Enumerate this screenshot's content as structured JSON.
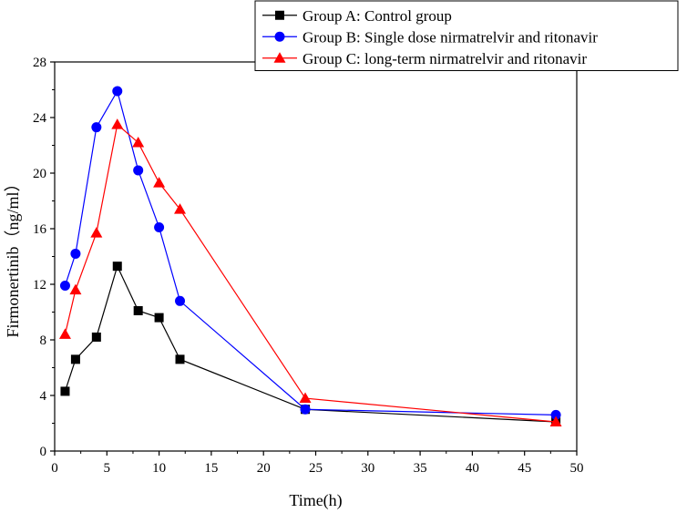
{
  "chart_data": {
    "type": "line",
    "title": "",
    "xlabel": "Time(h)",
    "ylabel": "Firmonertinib（ng/ml）",
    "xlim": [
      0,
      50
    ],
    "ylim": [
      0,
      28
    ],
    "x_ticks": [
      "0",
      "5",
      "10",
      "15",
      "20",
      "25",
      "30",
      "35",
      "40",
      "45",
      "50"
    ],
    "y_ticks": [
      "0",
      "4",
      "8",
      "12",
      "16",
      "20",
      "24",
      "28"
    ],
    "legend_position": "top-right",
    "series": [
      {
        "name": "Group A: Control group",
        "color": "#000000",
        "marker": "square",
        "x": [
          1,
          2,
          4,
          6,
          8,
          10,
          12,
          24,
          48
        ],
        "y": [
          4.3,
          6.6,
          8.2,
          13.3,
          10.1,
          9.6,
          6.6,
          3.0,
          2.1
        ]
      },
      {
        "name": "Group B: Single dose nirmatrelvir and ritonavir",
        "color": "#0000ff",
        "marker": "circle",
        "x": [
          1,
          2,
          4,
          6,
          8,
          10,
          12,
          24,
          48
        ],
        "y": [
          11.9,
          14.2,
          23.3,
          25.9,
          20.2,
          16.1,
          10.8,
          3.0,
          2.6
        ]
      },
      {
        "name": "Group C: long-term nirmatrelvir and ritonavir",
        "color": "#ff0000",
        "marker": "triangle",
        "x": [
          1,
          2,
          4,
          6,
          8,
          10,
          12,
          24,
          48
        ],
        "y": [
          8.4,
          11.6,
          15.7,
          23.5,
          22.2,
          19.3,
          17.4,
          3.8,
          2.1
        ]
      }
    ]
  }
}
